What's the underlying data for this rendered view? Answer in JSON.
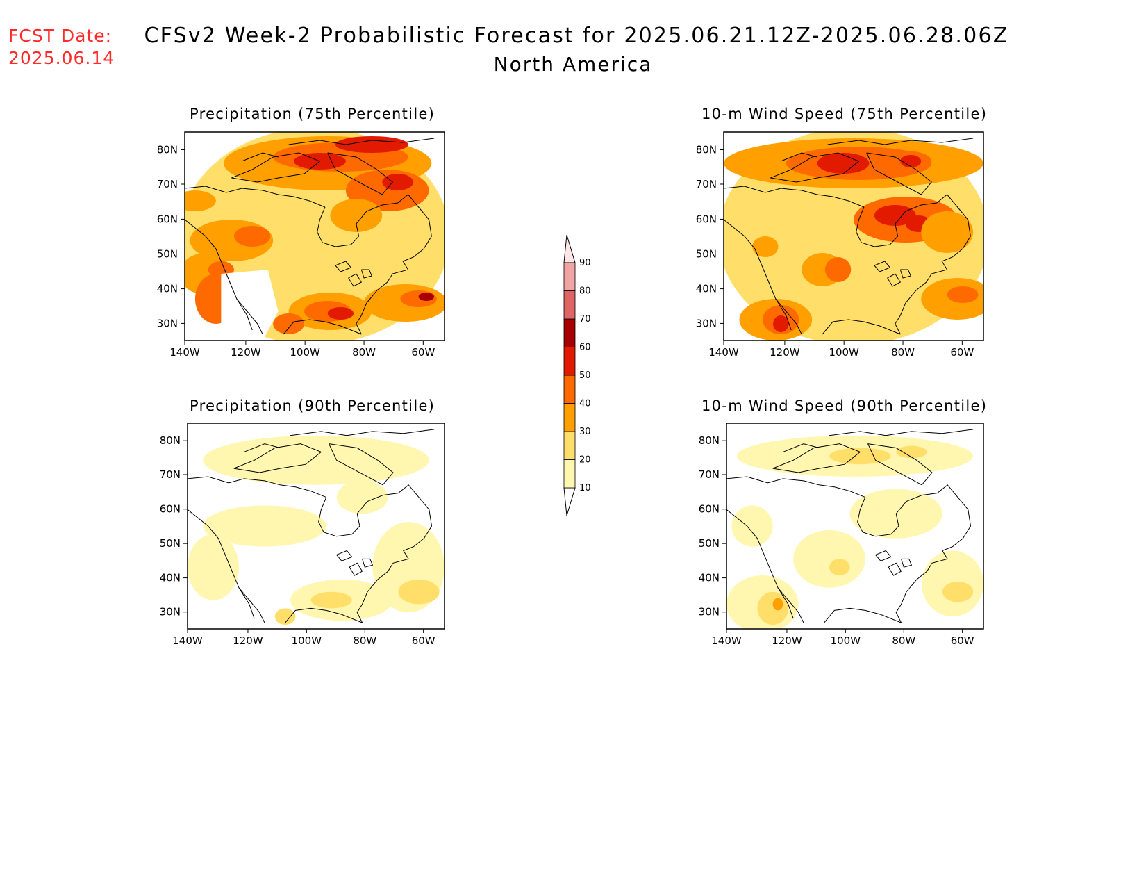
{
  "header": {
    "fcst_label": "FCST Date:",
    "fcst_date": "2025.06.14",
    "title": "CFSv2 Week-2 Probabilistic Forecast for 2025.06.21.12Z-2025.06.28.06Z",
    "subtitle": "North America"
  },
  "axes": {
    "lat_labels": [
      "80N",
      "70N",
      "60N",
      "50N",
      "40N",
      "30N"
    ],
    "lon_labels": [
      "140W",
      "120W",
      "100W",
      "80W",
      "60W"
    ]
  },
  "panels": [
    {
      "id": "precip75",
      "title": "Precipitation (75th Percentile)",
      "intensity": "high"
    },
    {
      "id": "wind75",
      "title": "10-m Wind Speed (75th Percentile)",
      "intensity": "high"
    },
    {
      "id": "precip90",
      "title": "Precipitation (90th Percentile)",
      "intensity": "low"
    },
    {
      "id": "wind90",
      "title": "10-m Wind Speed (90th Percentile)",
      "intensity": "low"
    }
  ],
  "colorbar": {
    "levels": [
      "10",
      "20",
      "30",
      "40",
      "50",
      "60",
      "70",
      "80",
      "90"
    ],
    "colors": [
      "#fff7b0",
      "#ffdf6a",
      "#ffa000",
      "#ff6a00",
      "#e21a00",
      "#a80000",
      "#e06464",
      "#f2a4a4",
      "#fde6e6"
    ]
  }
}
